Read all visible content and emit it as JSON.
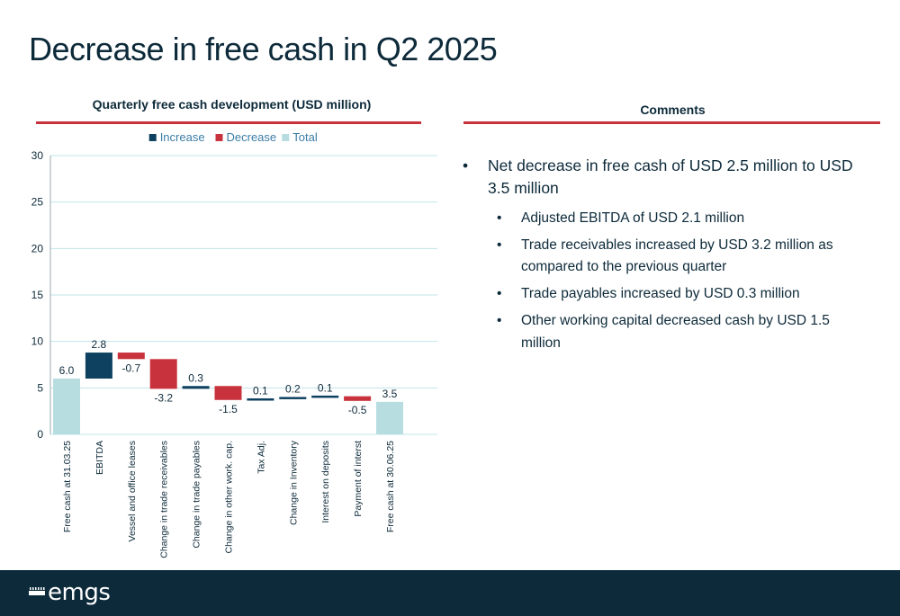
{
  "page": {
    "title": "Decrease in free cash in Q2 2025"
  },
  "chart_section": {
    "title": "Quarterly free cash development (USD million)"
  },
  "comments_section": {
    "title": "Comments",
    "items": [
      {
        "text": "Net decrease in free cash of USD 2.5 million to USD 3.5 million",
        "sub": [
          "Adjusted EBITDA of USD 2.1 million",
          "Trade receivables increased by USD 3.2 million as compared to the previous quarter",
          "Trade payables increased by USD 0.3 million",
          "Other working capital decreased cash by USD 1.5 million"
        ]
      }
    ]
  },
  "footer": {
    "logo_text": "emgs"
  },
  "colors": {
    "increase": "#0e4160",
    "decrease": "#c8323c",
    "total": "#b7dde0",
    "accent_rule": "#c8323c",
    "footer_bg": "#0d2a3a"
  },
  "chart_data": {
    "type": "waterfall",
    "title": "Quarterly free cash development (USD million)",
    "legend": [
      {
        "key": "increase",
        "label": "Increase"
      },
      {
        "key": "decrease",
        "label": "Decrease"
      },
      {
        "key": "total",
        "label": "Total"
      }
    ],
    "legend_position": "top",
    "ylim": [
      0,
      30
    ],
    "yticks": [
      0,
      5,
      10,
      15,
      20,
      25,
      30
    ],
    "grid": true,
    "categories": [
      "Free cash at 31.03.25",
      "EBITDA",
      "Vessel and office leases",
      "Change in trade receivables",
      "Change in trade payables",
      "Change in other work. cap.",
      "Tax Adj.",
      "Change in Inventory",
      "Interest on deposits",
      "Payment of interst",
      "Free cash at 30.06.25"
    ],
    "values": [
      6.0,
      2.8,
      -0.7,
      -3.2,
      0.3,
      -1.5,
      0.1,
      0.2,
      0.1,
      -0.5,
      3.5
    ],
    "labels": [
      "6.0",
      "2.8",
      "-0.7",
      "-3.2",
      "0.3",
      "-1.5",
      "0.1",
      "0.2",
      "0.1",
      "-0.5",
      "3.5"
    ],
    "kinds": [
      "total",
      "increase",
      "decrease",
      "decrease",
      "increase",
      "decrease",
      "increase",
      "increase",
      "increase",
      "decrease",
      "total"
    ]
  }
}
